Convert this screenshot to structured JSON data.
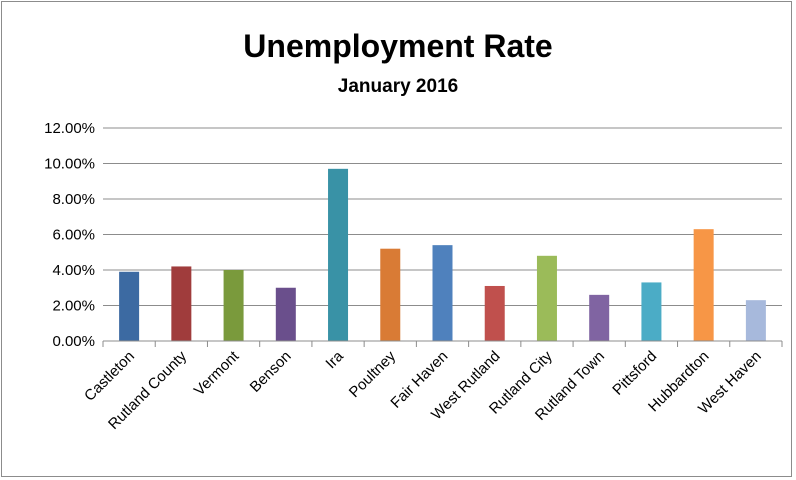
{
  "chart_data": {
    "type": "bar",
    "title": "Unemployment Rate",
    "subtitle": "January 2016",
    "xlabel": "",
    "ylabel": "",
    "ylim": [
      0,
      12
    ],
    "yticks": [
      "0.00%",
      "2.00%",
      "4.00%",
      "6.00%",
      "8.00%",
      "10.00%",
      "12.00%"
    ],
    "grid": true,
    "legend": "none",
    "categories": [
      "Castleton",
      "Rutland County",
      "Vermont",
      "Benson",
      "Ira",
      "Poultney",
      "Fair Haven",
      "West Rutland",
      "Rutland City",
      "Rutland Town",
      "Pittsford",
      "Hubbardton",
      "West Haven"
    ],
    "values": [
      3.9,
      4.2,
      4.0,
      3.0,
      9.7,
      5.2,
      5.4,
      3.1,
      4.8,
      2.6,
      3.3,
      6.3,
      2.3
    ],
    "colors": [
      "#3c6aa2",
      "#a03c3c",
      "#7a9a3c",
      "#6a4f8c",
      "#3992a6",
      "#d97b35",
      "#4f81bd",
      "#c0504d",
      "#9bbb59",
      "#8064a2",
      "#4bacc6",
      "#f79646",
      "#a7b9dc"
    ]
  }
}
